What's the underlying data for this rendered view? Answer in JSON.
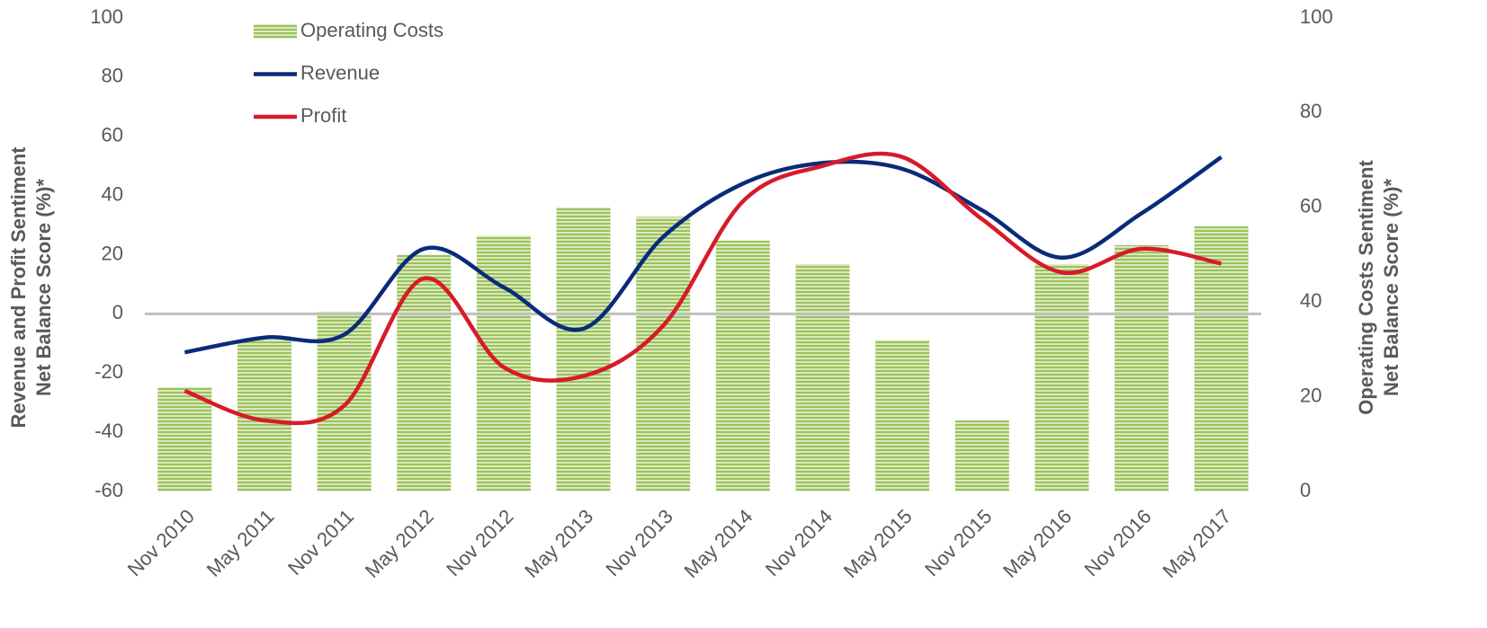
{
  "chart_data": {
    "type": "bar-line",
    "ylabel": [
      "Revenue and Profit Sentiment",
      "Net Balance Score (%)*"
    ],
    "y2label": [
      "Operating Costs Sentiment",
      "Net Balance Score (%)*"
    ],
    "categories": [
      "Nov 2010",
      "May 2011",
      "Nov 2011",
      "May 2012",
      "Nov 2012",
      "May 2013",
      "Nov 2013",
      "May 2014",
      "Nov 2014",
      "May 2015",
      "Nov 2015",
      "May 2016",
      "Nov 2016",
      "May 2017"
    ],
    "series": [
      {
        "name": "Operating Costs",
        "type": "bar",
        "axis": "y2",
        "color": "#9bc25a",
        "values": [
          22,
          32,
          38,
          50,
          54,
          60,
          58,
          53,
          48,
          32,
          15,
          48,
          52,
          56
        ]
      },
      {
        "name": "Revenue",
        "type": "line",
        "color": "#0a2b7a",
        "values": [
          -13,
          -8,
          -7,
          22,
          9,
          -5,
          26,
          44,
          51,
          49,
          35,
          19,
          34,
          53
        ]
      },
      {
        "name": "Profit",
        "type": "line",
        "color": "#d71a2a",
        "values": [
          -26,
          -36,
          -31,
          12,
          -18,
          -21,
          -4,
          38,
          50,
          53,
          32,
          14,
          22,
          17
        ]
      }
    ],
    "ylim": [
      -60,
      100
    ],
    "yticks": [
      -60,
      -40,
      -20,
      0,
      20,
      40,
      60,
      80,
      100
    ],
    "y2lim": [
      0,
      100
    ],
    "y2ticks": [
      0,
      20,
      40,
      60,
      80,
      100
    ]
  }
}
